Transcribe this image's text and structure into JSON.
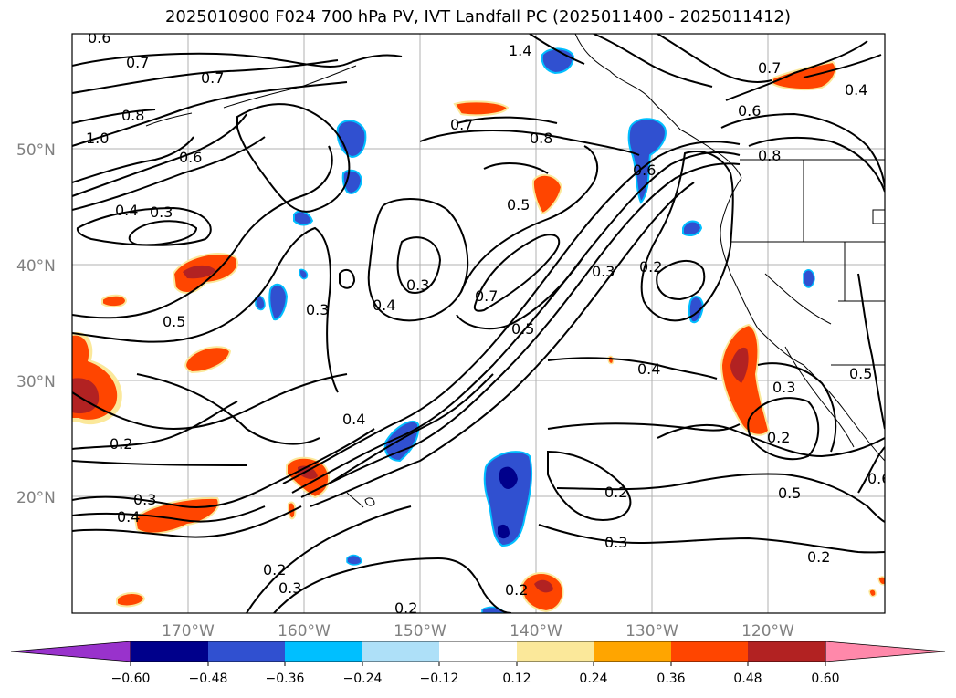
{
  "title": "2025010900 F024 700 hPa PV, IVT Landfall PC (2025011400 - 2025011412)",
  "map": {
    "lon_labels": [
      "170°W",
      "160°W",
      "150°W",
      "140°W",
      "130°W",
      "120°W"
    ],
    "lat_labels": [
      "50°N",
      "40°N",
      "30°N",
      "20°N"
    ],
    "contour_labels": [
      "0.6",
      "0.7",
      "0.7",
      "0.8",
      "1.0",
      "0.6",
      "0.4",
      "0.3",
      "1.4",
      "0.7",
      "0.8",
      "0.5",
      "0.6",
      "0.7",
      "0.6",
      "0.4",
      "0.5",
      "0.3",
      "0.4",
      "0.3",
      "0.7",
      "0.5",
      "0.2",
      "0.3",
      "0.4",
      "0.4",
      "0.2",
      "0.3",
      "0.4",
      "0.2",
      "0.3",
      "0.3",
      "0.2",
      "0.2",
      "0.3",
      "0.2",
      "0.2",
      "0.5",
      "0.6",
      "0.2",
      "0.5",
      "0.8"
    ],
    "colors": {
      "deep_blue": "#00008b",
      "mid_blue": "#3050d0",
      "light_blue": "#00bfff",
      "pale_blue": "#aee0f8",
      "pale_yellow": "#fbe89a",
      "orange": "#ffa500",
      "red_orange": "#ff4500",
      "dark_red": "#b22222"
    }
  },
  "colorbar": {
    "ticks": [
      "−0.60",
      "−0.48",
      "−0.36",
      "−0.24",
      "−0.12",
      "0.12",
      "0.24",
      "0.36",
      "0.48",
      "0.60"
    ],
    "colors": [
      "#9932cc",
      "#00008b",
      "#3050d0",
      "#00bfff",
      "#aee0f8",
      "#ffffff",
      "#fbe89a",
      "#ffa500",
      "#ff4500",
      "#b22222",
      "#ff88aa"
    ]
  }
}
